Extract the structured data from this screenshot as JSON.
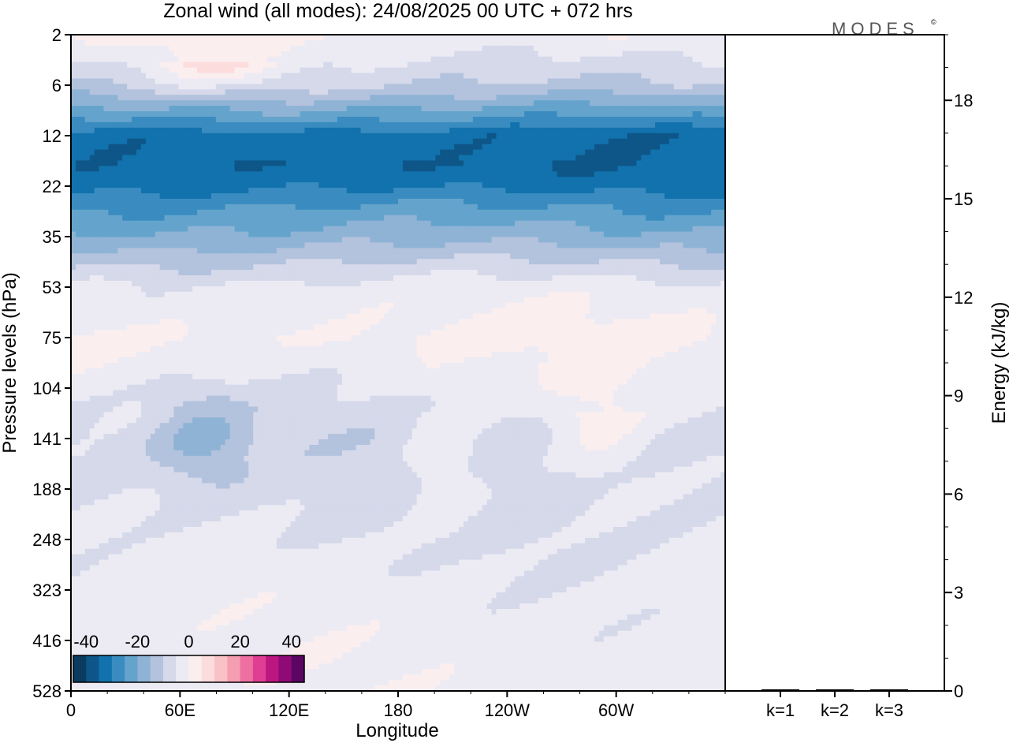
{
  "title": "Zonal wind (all modes):  24/08/2025  00 UTC  + 072 hrs",
  "logo": {
    "text": "MODES",
    "mark": "©"
  },
  "colors": {
    "neg": [
      "#0b3b5e",
      "#0e5688",
      "#1272ad",
      "#3a8cc0",
      "#64a4cc",
      "#8fb3d5",
      "#b3c2dd",
      "#d5d9ea",
      "#ecebf4"
    ],
    "pos": [
      "#fbeeee",
      "#fcdcdc",
      "#f8c2c7",
      "#f59eb1",
      "#ee70a0",
      "#df3e92",
      "#be1681",
      "#8f0a77",
      "#5b0662"
    ],
    "axis": "#000000"
  },
  "chart_data": [
    {
      "type": "heatmap",
      "title": "Zonal wind (all modes):  24/08/2025  00 UTC  + 072 hrs",
      "xlabel": "Longitude",
      "ylabel": "Pressure levels (hPa)",
      "x_ticks": [
        "0",
        "60E",
        "120E",
        "180",
        "120W",
        "60W"
      ],
      "x_tick_values": [
        0,
        60,
        120,
        180,
        240,
        300
      ],
      "xlim": [
        0,
        360
      ],
      "y_ticks": [
        "2",
        "6",
        "12",
        "22",
        "35",
        "53",
        "75",
        "104",
        "141",
        "188",
        "248",
        "323",
        "416",
        "528"
      ],
      "y_order": "top-to-bottom",
      "colorbar": {
        "ticks": [
          "-40",
          "-20",
          "0",
          "20",
          "40"
        ],
        "tick_values": [
          -40,
          -20,
          0,
          20,
          40
        ],
        "range": [
          -45,
          45
        ],
        "step": 5
      },
      "bands": [
        {
          "level": "2",
          "value": 0,
          "note": "near zero, weak positive patches"
        },
        {
          "level": "6",
          "value": -10
        },
        {
          "level": "12",
          "value": -32
        },
        {
          "level": "22",
          "value": -30
        },
        {
          "level": "35",
          "value": -18
        },
        {
          "level": "53",
          "value": -3
        },
        {
          "level": "75",
          "value": 1
        },
        {
          "level": "104",
          "value": -4
        },
        {
          "level": "141",
          "value": -8
        },
        {
          "level": "188",
          "value": -7
        },
        {
          "level": "248",
          "value": -5
        },
        {
          "level": "323",
          "value": -3
        },
        {
          "level": "416",
          "value": -2
        },
        {
          "level": "528",
          "value": -2
        }
      ],
      "features": [
        {
          "name": "easterly jet core",
          "lon": [
            0,
            360
          ],
          "levels": [
            "12",
            "22"
          ],
          "min_value": -38
        },
        {
          "name": "westward tilted minimum",
          "lon": [
            45,
            100
          ],
          "levels": [
            "104",
            "188"
          ],
          "min_value": -25
        },
        {
          "name": "weak westerly patch",
          "lon": [
            180,
            230
          ],
          "levels": [
            "104",
            "248"
          ],
          "max_value": 5
        },
        {
          "name": "weak westerly patch",
          "lon": [
            260,
            320
          ],
          "levels": [
            "75",
            "188"
          ],
          "max_value": 5
        },
        {
          "name": "upper stratosphere positive",
          "lon": [
            40,
            120
          ],
          "levels": [
            "2",
            "6"
          ],
          "max_value": 10
        }
      ]
    },
    {
      "type": "bar",
      "ylabel": "Energy (kJ/kg)",
      "categories": [
        "k=1",
        "k=2",
        "k=3"
      ],
      "values": [
        0.02,
        0.02,
        0.01
      ],
      "ylim": [
        0,
        20
      ],
      "y_ticks": [
        "0",
        "3",
        "6",
        "9",
        "12",
        "15",
        "18"
      ],
      "y_tick_values": [
        0,
        3,
        6,
        9,
        12,
        15,
        18
      ],
      "y_minor_step": 1
    }
  ]
}
